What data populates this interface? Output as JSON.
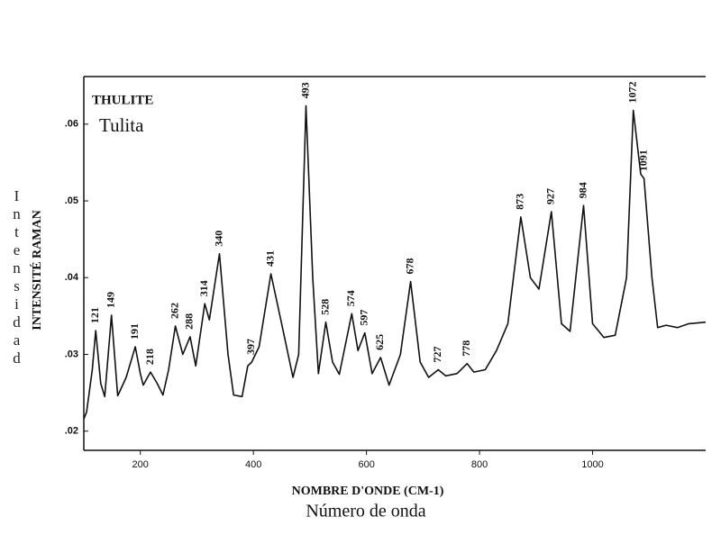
{
  "chart_data": {
    "type": "line",
    "title": "THULITE",
    "subtitle": "Tulita",
    "x_label": "NOMBRE D'ONDE (CM-1)",
    "x_label_2": "Número de onda",
    "y_label": "INTENSITÉ RAMAN",
    "y_label_2": "Intensidad",
    "color": "#111111",
    "x": [
      100,
      105,
      115,
      121,
      130,
      137,
      149,
      160,
      175,
      191,
      200,
      205,
      218,
      230,
      240,
      250,
      262,
      275,
      288,
      298,
      314,
      322,
      340,
      355,
      365,
      380,
      390,
      397,
      410,
      431,
      450,
      470,
      480,
      493,
      505,
      515,
      528,
      540,
      552,
      574,
      585,
      597,
      610,
      625,
      640,
      660,
      678,
      695,
      710,
      727,
      740,
      760,
      778,
      790,
      810,
      830,
      850,
      873,
      890,
      905,
      927,
      945,
      960,
      984,
      1000,
      1020,
      1040,
      1060,
      1072,
      1085,
      1091,
      1105,
      1115,
      1130,
      1150,
      1170,
      1200
    ],
    "y": [
      0.0216,
      0.0225,
      0.028,
      0.0331,
      0.0262,
      0.0245,
      0.0351,
      0.0246,
      0.027,
      0.031,
      0.0275,
      0.026,
      0.0277,
      0.0262,
      0.0247,
      0.028,
      0.0337,
      0.03,
      0.0323,
      0.0285,
      0.0366,
      0.0345,
      0.0431,
      0.03,
      0.0247,
      0.0245,
      0.0285,
      0.029,
      0.031,
      0.0405,
      0.034,
      0.027,
      0.03,
      0.0624,
      0.04,
      0.0275,
      0.0342,
      0.029,
      0.0274,
      0.0353,
      0.0305,
      0.0328,
      0.0275,
      0.0296,
      0.026,
      0.03,
      0.0395,
      0.029,
      0.027,
      0.028,
      0.0272,
      0.0275,
      0.0288,
      0.0277,
      0.028,
      0.0305,
      0.034,
      0.0479,
      0.04,
      0.0385,
      0.0486,
      0.034,
      0.033,
      0.0494,
      0.034,
      0.0322,
      0.0325,
      0.04,
      0.0618,
      0.0535,
      0.0529,
      0.04,
      0.0335,
      0.0338,
      0.0335,
      0.034,
      0.0342
    ],
    "peaks": [
      121,
      149,
      191,
      218,
      262,
      288,
      314,
      340,
      397,
      431,
      493,
      528,
      574,
      597,
      625,
      678,
      727,
      778,
      873,
      927,
      984,
      1072,
      1091
    ],
    "xlim": [
      100,
      1200
    ],
    "xticks": [
      200,
      400,
      600,
      800,
      1000
    ],
    "ylim": [
      0.0175,
      0.0662
    ],
    "yticks": [
      {
        "value": 0.02,
        "label": ".02"
      },
      {
        "value": 0.03,
        "label": ".03"
      },
      {
        "value": 0.04,
        "label": ".04"
      },
      {
        "value": 0.05,
        "label": ".05"
      },
      {
        "value": 0.06,
        "label": ".06"
      }
    ]
  }
}
